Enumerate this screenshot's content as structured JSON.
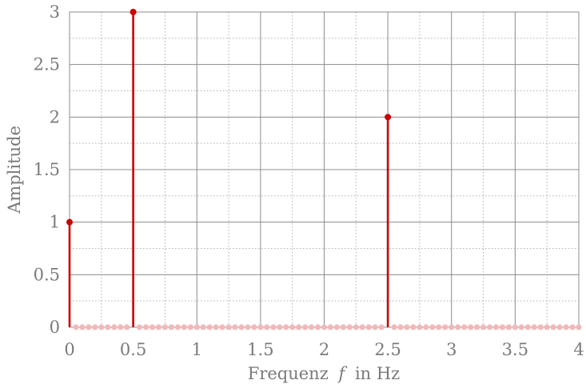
{
  "chart_data": {
    "type": "stem",
    "xlabel_prefix": "Frequenz",
    "xlabel_var": "f",
    "xlabel_suffix": "in Hz",
    "ylabel": "Amplitude",
    "xlim": [
      0,
      4
    ],
    "ylim": [
      0,
      3
    ],
    "x_ticks": [
      "0",
      "0.5",
      "1",
      "1.5",
      "2",
      "2.5",
      "3",
      "3.5",
      "4"
    ],
    "y_ticks": [
      "0",
      "0.5",
      "1",
      "1.5",
      "2",
      "2.5",
      "3"
    ],
    "grid": true,
    "minor_grid": true,
    "colors": {
      "stem": "#cc0000",
      "zero_marker": "#f2b8b8",
      "grid_major": "#8c8c8c",
      "grid_minor": "#b0b0b0",
      "text": "#7a7a7a"
    },
    "series": [
      {
        "points": [
          {
            "x": 0,
            "y": 1
          },
          {
            "x": 0.5,
            "y": 3
          },
          {
            "x": 2.5,
            "y": 2
          }
        ],
        "zero_samples": {
          "start": 0,
          "end": 4,
          "step": 0.05
        }
      }
    ]
  }
}
